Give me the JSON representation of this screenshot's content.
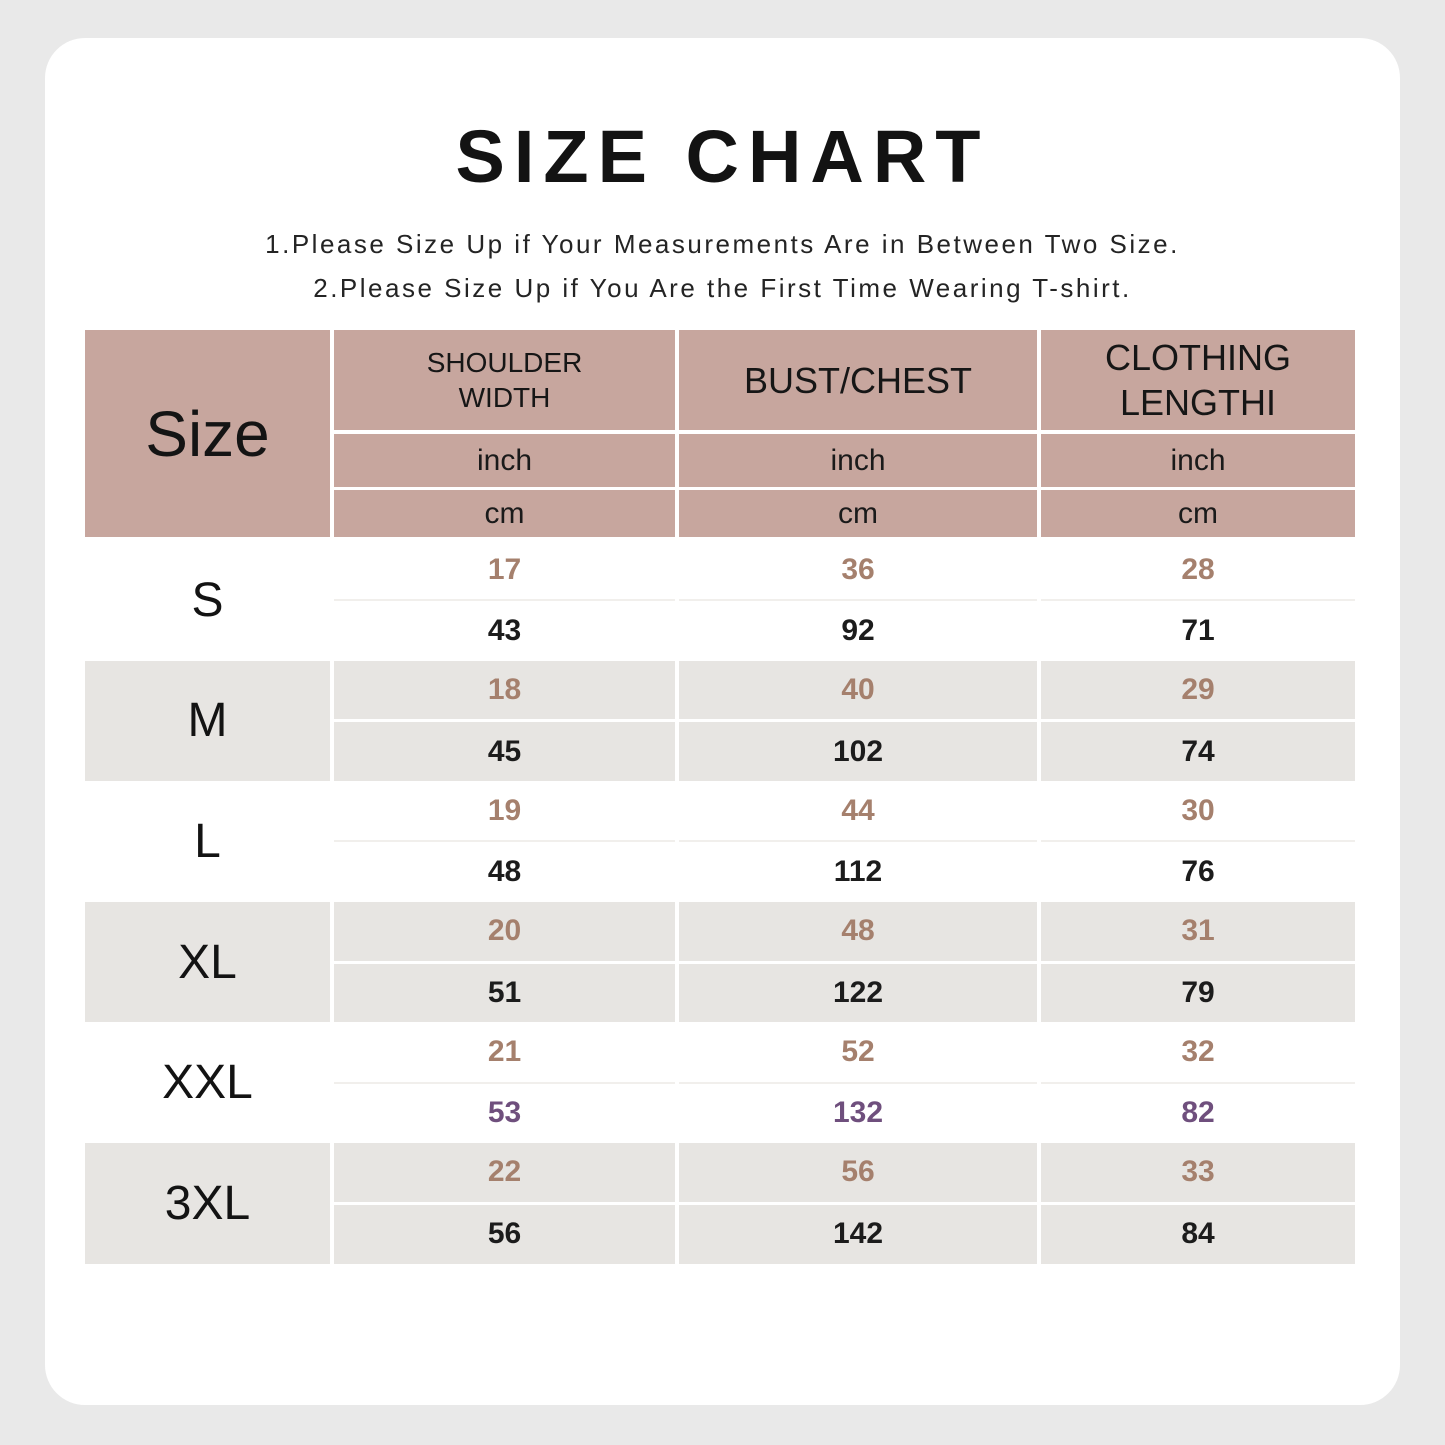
{
  "page": {
    "title": "SIZE CHART",
    "notes": [
      "1.Please Size Up if Your Measurements Are in Between Two Size.",
      "2.Please Size Up if You Are the First Time Wearing T-shirt."
    ]
  },
  "table": {
    "corner_label": "Size",
    "columns": [
      {
        "label": "SHOULDER WIDTH"
      },
      {
        "label": "BUST/CHEST"
      },
      {
        "label": "CLOTHING LENGTHI"
      }
    ],
    "units": [
      "inch",
      "cm"
    ],
    "rows": [
      {
        "size": "S",
        "inch": [
          "17",
          "36",
          "28"
        ],
        "cm": [
          "43",
          "92",
          "71"
        ]
      },
      {
        "size": "M",
        "inch": [
          "18",
          "40",
          "29"
        ],
        "cm": [
          "45",
          "102",
          "74"
        ]
      },
      {
        "size": "L",
        "inch": [
          "19",
          "44",
          "30"
        ],
        "cm": [
          "48",
          "112",
          "76"
        ]
      },
      {
        "size": "XL",
        "inch": [
          "20",
          "48",
          "31"
        ],
        "cm": [
          "51",
          "122",
          "79"
        ]
      },
      {
        "size": "XXL",
        "inch": [
          "21",
          "52",
          "32"
        ],
        "cm": [
          "53",
          "132",
          "82"
        ]
      },
      {
        "size": "3XL",
        "inch": [
          "22",
          "56",
          "33"
        ],
        "cm": [
          "56",
          "142",
          "84"
        ]
      }
    ],
    "colors": {
      "page_bg": "#e9e9e9",
      "card_bg": "#ffffff",
      "header_bg": "#c7a69e",
      "row_alt_bg": "#e7e5e2",
      "inch_text": "#a5806d",
      "cm_text": "#1c1c1c",
      "xxl_cm_text": "#6f4f7d"
    }
  }
}
